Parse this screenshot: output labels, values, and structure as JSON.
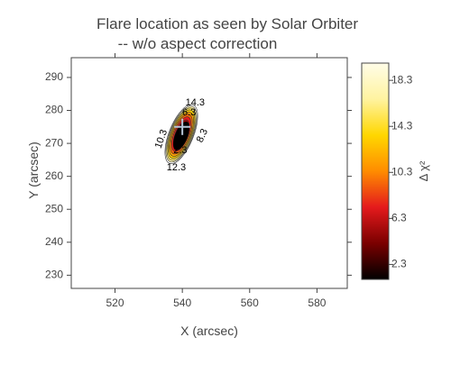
{
  "chart_data": {
    "type": "contour",
    "title_line1": "Flare location as seen by Solar Orbiter",
    "title_line2": "-- w/o aspect correction",
    "xlabel": "X (arcsec)",
    "ylabel": "Y (arcsec)",
    "xlim": [
      507,
      589
    ],
    "ylim": [
      226,
      296
    ],
    "xticks": [
      520,
      540,
      560,
      580
    ],
    "yticks": [
      230,
      240,
      250,
      260,
      270,
      280,
      290
    ],
    "best_fit": {
      "x": 540,
      "y": 275
    },
    "contour_center": {
      "x": 539.7,
      "y": 272.8
    },
    "contour_levels": [
      2.3,
      4.3,
      6.3,
      8.3,
      10.3,
      12.3,
      14.3,
      16.3,
      18.3
    ],
    "contour_labels": [
      {
        "text": "14.3",
        "x": 543.8,
        "y": 282.3,
        "rotate": 0
      },
      {
        "text": "6.3",
        "x": 542.0,
        "y": 279.3,
        "rotate": 0
      },
      {
        "text": "10.3",
        "x": 533.8,
        "y": 271.3,
        "rotate": -70
      },
      {
        "text": "8.3",
        "x": 546.0,
        "y": 272.3,
        "rotate": -65
      },
      {
        "text": "2.3",
        "x": 539.4,
        "y": 267.8,
        "rotate": 0
      },
      {
        "text": "12.3",
        "x": 538.2,
        "y": 262.6,
        "rotate": 0
      }
    ],
    "colorbar": {
      "label": "Δ χ²",
      "range": [
        1.0,
        19.8
      ],
      "ticks": [
        2.3,
        6.3,
        10.3,
        14.3,
        18.3
      ],
      "colorscale": [
        "#000000",
        "#7a0000",
        "#e41a1c",
        "#ff8c00",
        "#ffd700",
        "#fff3a0",
        "#fffde8"
      ]
    },
    "grid": false,
    "legend": "none"
  }
}
